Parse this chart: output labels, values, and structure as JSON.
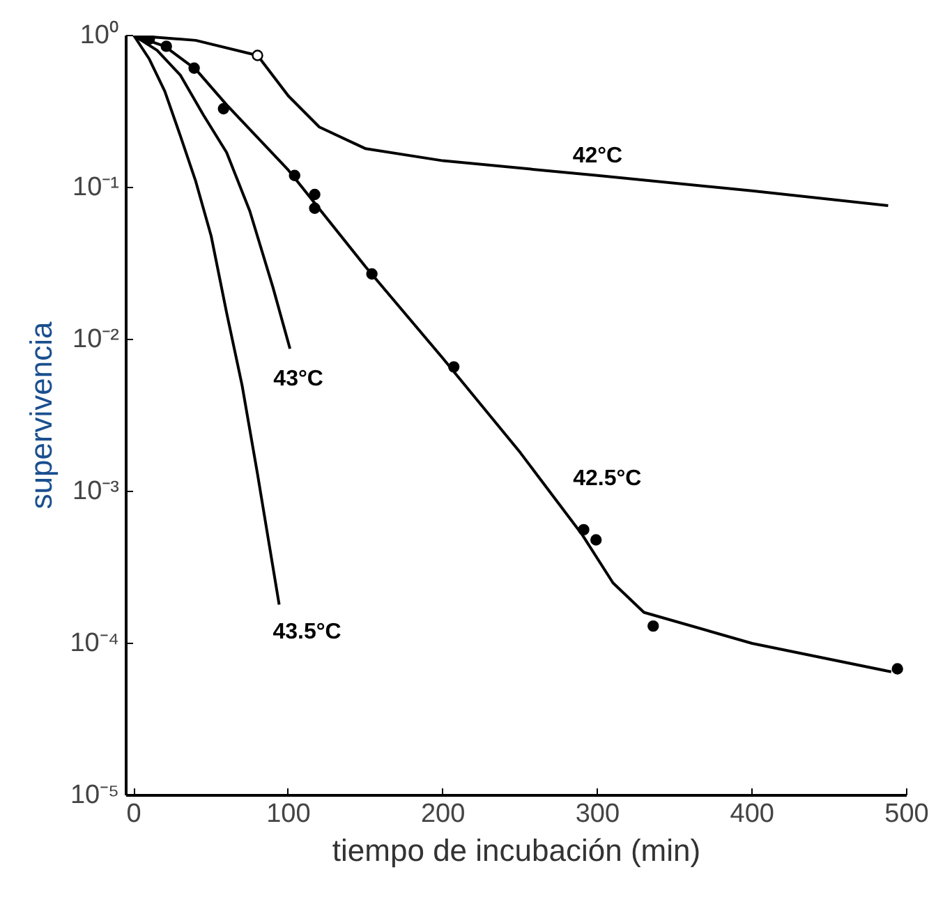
{
  "chart_data": {
    "type": "line",
    "xlabel": "tiempo de incubación (min)",
    "ylabel": "supervivencia",
    "log": "y",
    "grid": false,
    "xlim": [
      -5,
      500
    ],
    "xticks": [
      0,
      100,
      200,
      300,
      400,
      500
    ],
    "ylim": [
      1e-05,
      1
    ],
    "yticks": [
      {
        "value": 1,
        "label": "10⁰"
      },
      {
        "value": 0.1,
        "label": "10⁻¹"
      },
      {
        "value": 0.01,
        "label": "10⁻²"
      },
      {
        "value": 0.001,
        "label": "10⁻³"
      },
      {
        "value": 0.0001,
        "label": "10⁻⁴"
      },
      {
        "value": 1e-05,
        "label": "10⁻⁵"
      }
    ],
    "series": [
      {
        "name": "42°C",
        "color": "#000000",
        "x": [
          0,
          40,
          80,
          100,
          120,
          150,
          200,
          300,
          400,
          488
        ],
        "values": [
          1,
          0.93,
          0.74,
          0.4,
          0.25,
          0.18,
          0.15,
          0.12,
          0.095,
          0.076
        ]
      },
      {
        "name": "42.5°C",
        "color": "#000000",
        "x": [
          0,
          20,
          40,
          60,
          100,
          150,
          200,
          250,
          290,
          310,
          330,
          400,
          490
        ],
        "values": [
          1,
          0.85,
          0.6,
          0.35,
          0.13,
          0.03,
          0.0075,
          0.0018,
          0.00052,
          0.00025,
          0.00016,
          0.0001,
          6.5e-05
        ]
      },
      {
        "name": "43°C",
        "color": "#000000",
        "x": [
          0,
          15,
          30,
          45,
          60,
          75,
          90,
          101
        ],
        "values": [
          1,
          0.8,
          0.55,
          0.3,
          0.17,
          0.07,
          0.022,
          0.0087
        ]
      },
      {
        "name": "43.5°C",
        "color": "#000000",
        "x": [
          0,
          10,
          20,
          30,
          40,
          50,
          60,
          70,
          80,
          94
        ],
        "values": [
          1,
          0.7,
          0.43,
          0.22,
          0.11,
          0.048,
          0.015,
          0.005,
          0.0013,
          0.00018
        ]
      },
      {
        "type": "scatter",
        "marker": "circle",
        "color": "#ffffff",
        "x": [
          80
        ],
        "values": [
          0.74
        ]
      },
      {
        "type": "scatter",
        "marker": "circle",
        "color": "#000000",
        "x": [
          10,
          21,
          39,
          58,
          104,
          117,
          117,
          154,
          207,
          291,
          299,
          336,
          494
        ],
        "values": [
          0.95,
          0.85,
          0.61,
          0.33,
          0.12,
          0.09,
          0.073,
          0.027,
          0.0066,
          0.00056,
          0.00048,
          0.00013,
          6.8e-05
        ]
      }
    ]
  }
}
